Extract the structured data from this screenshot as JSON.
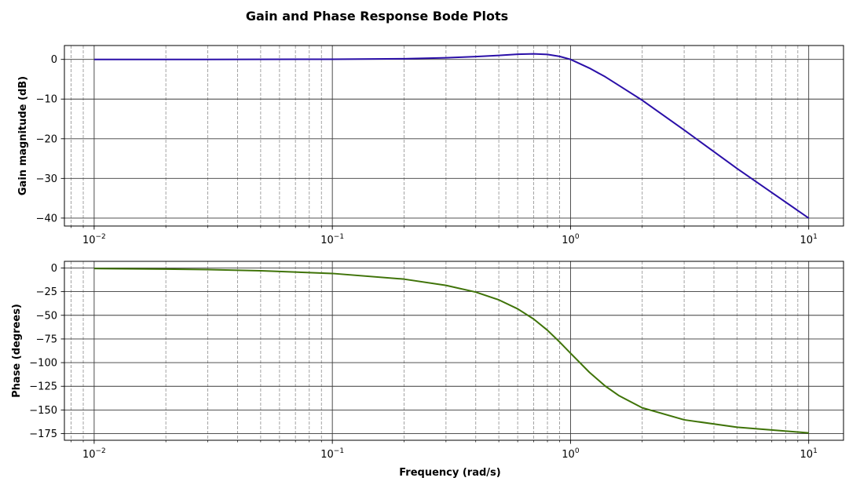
{
  "title": "Gain and Phase Response Bode Plots",
  "chart_data": [
    {
      "type": "line",
      "ylabel": "Gain magnitude (dB)",
      "xlabel": "",
      "xscale": "log",
      "xlim": [
        0.0075,
        14
      ],
      "ylim": [
        -42,
        3.5
      ],
      "x_ticks": [
        {
          "value": 0.01,
          "label": "10−2"
        },
        {
          "value": 0.1,
          "label": "10−1"
        },
        {
          "value": 1,
          "label": "100"
        },
        {
          "value": 10,
          "label": "101"
        }
      ],
      "y_ticks": [
        {
          "value": 0,
          "label": "0"
        },
        {
          "value": -10,
          "label": "−10"
        },
        {
          "value": -20,
          "label": "−20"
        },
        {
          "value": -30,
          "label": "−30"
        },
        {
          "value": -40,
          "label": "−40"
        }
      ],
      "grid": true,
      "series": [
        {
          "color": "#2a0fa8",
          "x": [
            0.01,
            0.03,
            0.1,
            0.2,
            0.3,
            0.4,
            0.5,
            0.6,
            0.7,
            0.8,
            0.9,
            1.0,
            1.2,
            1.4,
            1.6,
            2.0,
            3.0,
            5.0,
            10.0
          ],
          "y": [
            0.0,
            0.0,
            0.04,
            0.17,
            0.4,
            0.7,
            1.0,
            1.3,
            1.4,
            1.25,
            0.75,
            0.0,
            -2.2,
            -4.4,
            -6.6,
            -10.3,
            -17.8,
            -27.5,
            -40.0
          ]
        }
      ]
    },
    {
      "type": "line",
      "ylabel": "Phase (degrees)",
      "xlabel": "Frequency (rad/s)",
      "xscale": "log",
      "xlim": [
        0.0075,
        14
      ],
      "ylim": [
        -182,
        7
      ],
      "x_ticks": [
        {
          "value": 0.01,
          "label": "10−2"
        },
        {
          "value": 0.1,
          "label": "10−1"
        },
        {
          "value": 1,
          "label": "100"
        },
        {
          "value": 10,
          "label": "101"
        }
      ],
      "y_ticks": [
        {
          "value": 0,
          "label": "0"
        },
        {
          "value": -25,
          "label": "−25"
        },
        {
          "value": -50,
          "label": "−50"
        },
        {
          "value": -75,
          "label": "−75"
        },
        {
          "value": -100,
          "label": "−100"
        },
        {
          "value": -125,
          "label": "−125"
        },
        {
          "value": -150,
          "label": "−150"
        },
        {
          "value": -175,
          "label": "−175"
        }
      ],
      "grid": true,
      "series": [
        {
          "color": "#3f7308",
          "x": [
            0.01,
            0.02,
            0.03,
            0.05,
            0.1,
            0.2,
            0.3,
            0.4,
            0.5,
            0.6,
            0.7,
            0.8,
            0.9,
            1.0,
            1.2,
            1.4,
            1.6,
            2.0,
            3.0,
            5.0,
            10.0
          ],
          "y": [
            -0.6,
            -1.2,
            -1.7,
            -2.9,
            -5.8,
            -11.8,
            -18.4,
            -25.5,
            -33.7,
            -43.2,
            -53.9,
            -65.8,
            -78.2,
            -90.0,
            -110.2,
            -124.8,
            -135.0,
            -147.7,
            -160.4,
            -168.2,
            -174.2
          ]
        }
      ]
    }
  ]
}
